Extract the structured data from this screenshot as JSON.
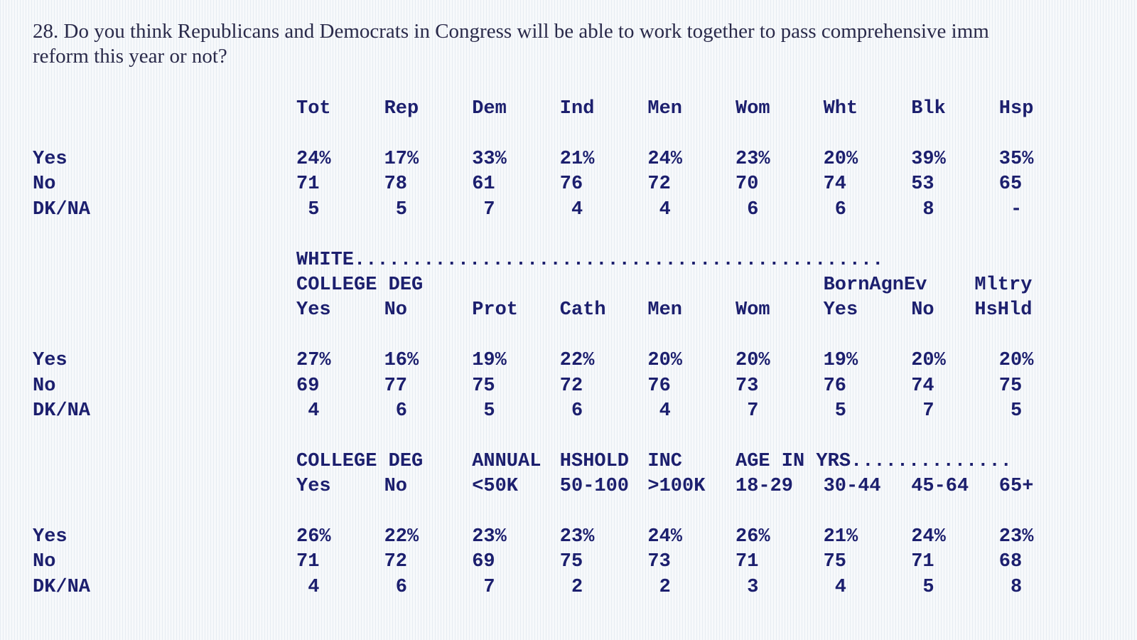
{
  "question": {
    "lines": [
      "28. Do you think Republicans and Democrats in Congress will be able to work together to pass comprehensive imm",
      "reform this year or not?"
    ]
  },
  "blocks": [
    {
      "header_rows": [
        [
          "Tot",
          "Rep",
          "Dem",
          "Ind",
          "Men",
          "Wom",
          "Wht",
          "Blk",
          "Hsp"
        ]
      ],
      "rows": [
        {
          "label": "Yes",
          "cells": [
            "24%",
            "17%",
            "33%",
            "21%",
            "24%",
            "23%",
            "20%",
            "39%",
            "35%"
          ]
        },
        {
          "label": "No",
          "cells": [
            "71",
            "78",
            "61",
            "76",
            "72",
            "70",
            "74",
            "53",
            "65"
          ]
        },
        {
          "label": "DK/NA",
          "cells": [
            "5",
            "5",
            "7",
            "4",
            "4",
            "6",
            "6",
            "8",
            "-"
          ]
        }
      ]
    },
    {
      "header_rows": [
        [
          "WHITE..............................................",
          null,
          null,
          null,
          null,
          null,
          null,
          null,
          null
        ],
        [
          "COLLEGE DEG",
          null,
          null,
          null,
          null,
          null,
          "BornAgnEv",
          null,
          "Mltry"
        ],
        [
          "Yes",
          "No",
          "Prot",
          "Cath",
          "Men",
          "Wom",
          "Yes",
          "No",
          "HsHld"
        ]
      ],
      "rows": [
        {
          "label": "Yes",
          "cells": [
            "27%",
            "16%",
            "19%",
            "22%",
            "20%",
            "20%",
            "19%",
            "20%",
            "20%"
          ]
        },
        {
          "label": "No",
          "cells": [
            "69",
            "77",
            "75",
            "72",
            "76",
            "73",
            "76",
            "74",
            "75"
          ]
        },
        {
          "label": "DK/NA",
          "cells": [
            "4",
            "6",
            "5",
            "6",
            "4",
            "7",
            "5",
            "7",
            "5"
          ]
        }
      ]
    },
    {
      "header_rows": [
        [
          "COLLEGE DEG",
          null,
          "ANNUAL",
          "HSHOLD",
          "INC",
          "AGE IN YRS..............",
          null,
          null,
          null
        ],
        [
          "Yes",
          "No",
          "<50K",
          "50-100",
          ">100K",
          "18-29",
          "30-44",
          "45-64",
          "65+"
        ]
      ],
      "rows": [
        {
          "label": "Yes",
          "cells": [
            "26%",
            "22%",
            "23%",
            "23%",
            "24%",
            "26%",
            "21%",
            "24%",
            "23%"
          ]
        },
        {
          "label": "No",
          "cells": [
            "71",
            "72",
            "69",
            "75",
            "73",
            "71",
            "75",
            "71",
            "68"
          ]
        },
        {
          "label": "DK/NA",
          "cells": [
            "4",
            "6",
            "7",
            "2",
            "2",
            "3",
            "4",
            "5",
            "8"
          ]
        }
      ]
    }
  ]
}
